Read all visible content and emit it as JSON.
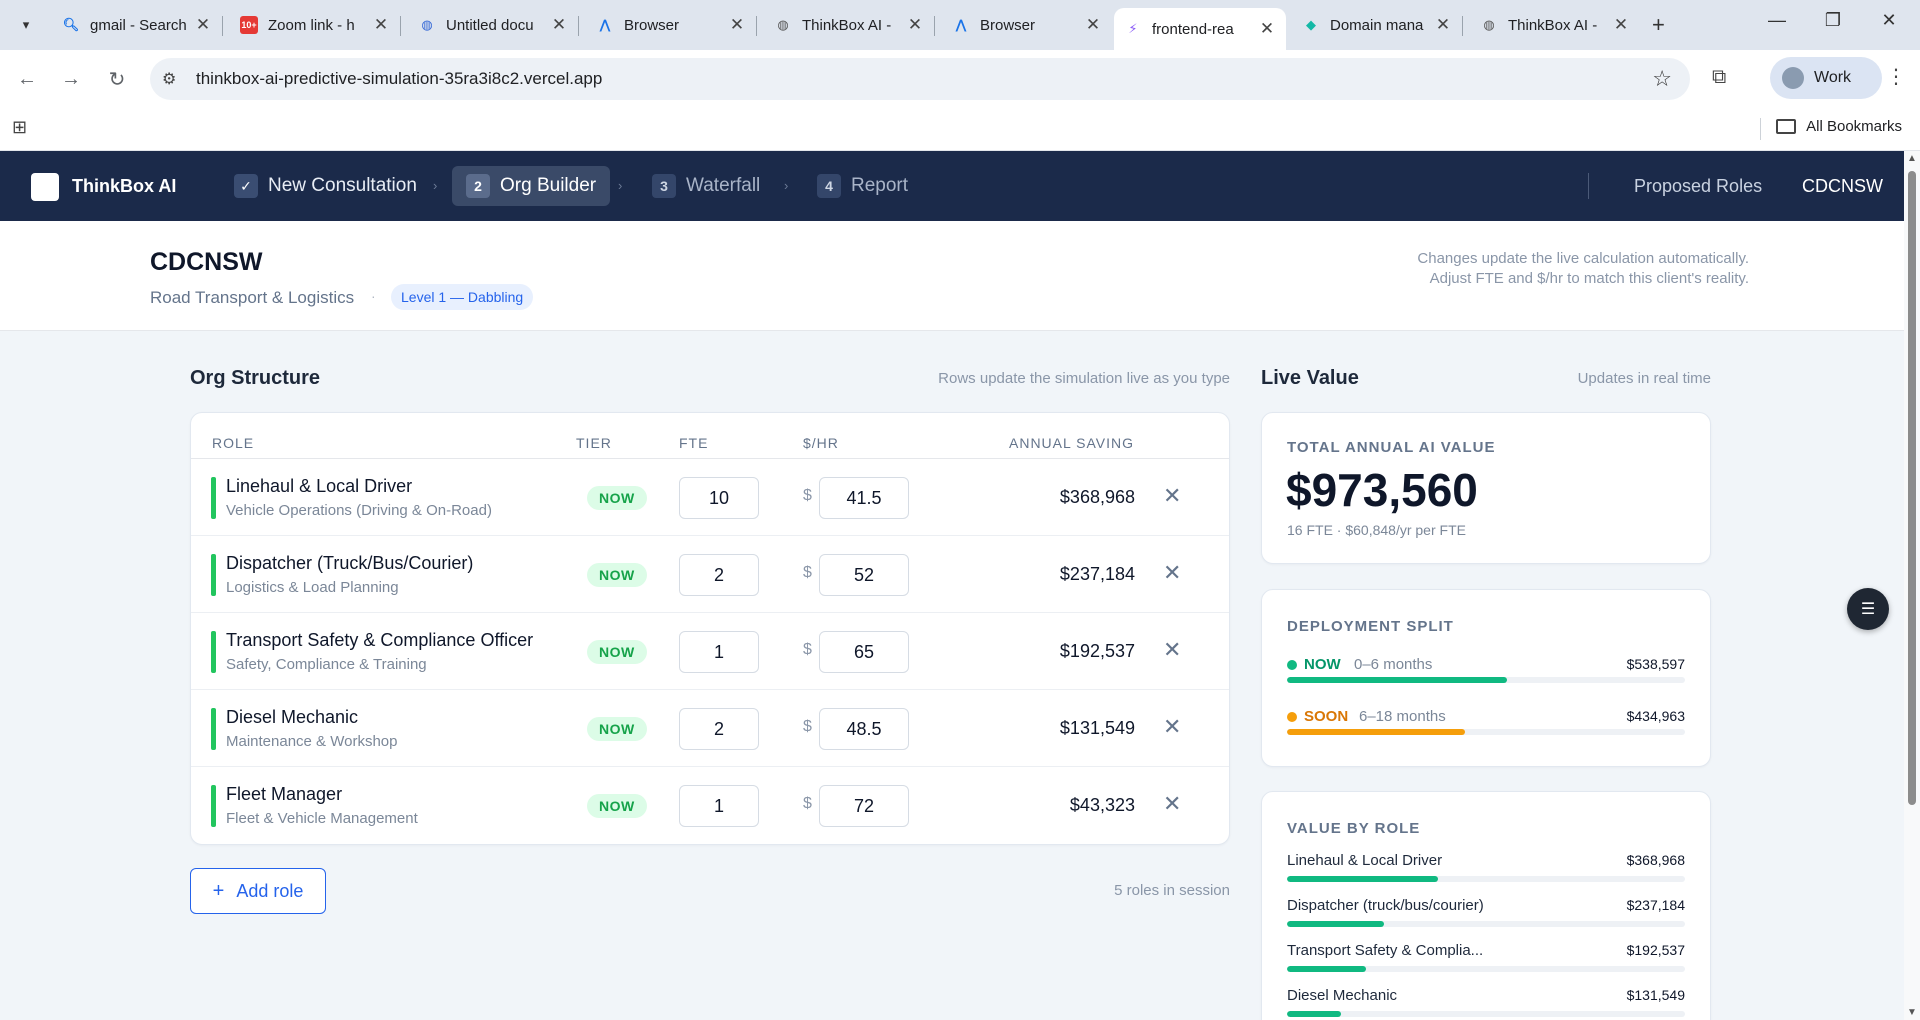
{
  "browser": {
    "tabs": [
      {
        "title": "gmail - Search",
        "icon": "search-icon"
      },
      {
        "title": "Zoom link - h",
        "icon": "zoom-favicon"
      },
      {
        "title": "Untitled docu",
        "icon": "globe-icon"
      },
      {
        "title": "Browser",
        "icon": "a-logo-icon"
      },
      {
        "title": "ThinkBox AI -",
        "icon": "globe-icon"
      },
      {
        "title": "Browser",
        "icon": "a-logo-icon"
      },
      {
        "title": "frontend-rea",
        "icon": "bolt-icon"
      },
      {
        "title": "Domain mana",
        "icon": "diamond-icon"
      },
      {
        "title": "ThinkBox AI -",
        "icon": "globe-icon"
      }
    ],
    "active_tab_index": 6,
    "url": "thinkbox-ai-predictive-simulation-35ra3i8c2.vercel.app",
    "profile_label": "Work",
    "bookmarks_label": "All Bookmarks"
  },
  "app": {
    "brand": "ThinkBox AI",
    "steps": [
      {
        "num": "✓",
        "label": "New Consultation",
        "state": "done"
      },
      {
        "num": "2",
        "label": "Org Builder",
        "state": "current"
      },
      {
        "num": "3",
        "label": "Waterfall",
        "state": "upcoming"
      },
      {
        "num": "4",
        "label": "Report",
        "state": "upcoming"
      }
    ],
    "nav_links": {
      "proposed_roles": "Proposed Roles",
      "client": "CDCNSW"
    }
  },
  "header": {
    "client_name": "CDCNSW",
    "industry": "Road Transport & Logistics",
    "level_badge": "Level 1 — Dabbling",
    "hint_line1": "Changes update the live calculation automatically.",
    "hint_line2": "Adjust FTE and $/hr to match this client's reality."
  },
  "org": {
    "title": "Org Structure",
    "note": "Rows update the simulation live as you type",
    "columns": {
      "role": "ROLE",
      "tier": "TIER",
      "fte": "FTE",
      "rate": "$/HR",
      "saving": "ANNUAL SAVING"
    },
    "currency_symbol": "$",
    "rows": [
      {
        "name": "Linehaul & Local Driver",
        "category": "Vehicle Operations (Driving & On-Road)",
        "tier": "NOW",
        "fte": "10",
        "rate": "41.5",
        "saving": "$368,968"
      },
      {
        "name": "Dispatcher (Truck/Bus/Courier)",
        "category": "Logistics & Load Planning",
        "tier": "NOW",
        "fte": "2",
        "rate": "52",
        "saving": "$237,184"
      },
      {
        "name": "Transport Safety & Compliance Officer",
        "category": "Safety, Compliance & Training",
        "tier": "NOW",
        "fte": "1",
        "rate": "65",
        "saving": "$192,537"
      },
      {
        "name": "Diesel Mechanic",
        "category": "Maintenance & Workshop",
        "tier": "NOW",
        "fte": "2",
        "rate": "48.5",
        "saving": "$131,549"
      },
      {
        "name": "Fleet Manager",
        "category": "Fleet & Vehicle Management",
        "tier": "NOW",
        "fte": "1",
        "rate": "72",
        "saving": "$43,323"
      }
    ],
    "add_role_label": "Add role",
    "roles_count": "5 roles in session"
  },
  "live": {
    "title": "Live Value",
    "note": "Updates in real time",
    "total_label": "TOTAL ANNUAL AI VALUE",
    "total_value": "$973,560",
    "total_sub": "16 FTE · $60,848/yr per FTE",
    "split_label": "DEPLOYMENT SPLIT",
    "split": [
      {
        "label": "NOW",
        "sub": "0–6 months",
        "amount": "$538,597",
        "fraction": 0.553,
        "color": "#10b981"
      },
      {
        "label": "SOON",
        "sub": "6–18 months",
        "amount": "$434,963",
        "fraction": 0.447,
        "color": "#f59e0b"
      }
    ],
    "by_role_label": "VALUE BY ROLE",
    "by_role": [
      {
        "label": "Linehaul & Local Driver",
        "amount": "$368,968",
        "fraction": 0.379
      },
      {
        "label": "Dispatcher (truck/bus/courier)",
        "amount": "$237,184",
        "fraction": 0.244
      },
      {
        "label": "Transport Safety & Complia...",
        "amount": "$192,537",
        "fraction": 0.198
      },
      {
        "label": "Diesel Mechanic",
        "amount": "$131,549",
        "fraction": 0.135
      }
    ]
  },
  "colors": {
    "nav_bg": "#1b2a4a",
    "accent": "#2563eb",
    "now": "#10b981",
    "soon": "#f59e0b"
  }
}
